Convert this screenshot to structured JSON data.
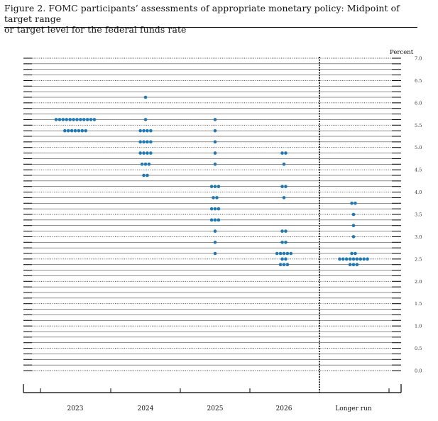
{
  "title": {
    "line1": "Figure 2.  FOMC participants’ assessments of appropriate monetary policy:  Midpoint of target range",
    "line2": "or target level for the federal funds rate"
  },
  "chart_data": {
    "type": "scatter",
    "subtype": "dot-plot",
    "unit_label": "Percent",
    "categories": [
      "2023",
      "2024",
      "2025",
      "2026",
      "Longer run"
    ],
    "ylim": [
      0.0,
      7.0
    ],
    "y_ticks": [
      "0.0",
      "0.5",
      "1.0",
      "1.5",
      "2.0",
      "2.5",
      "3.0",
      "3.5",
      "4.0",
      "4.5",
      "5.0",
      "5.5",
      "6.0",
      "6.5",
      "7.0"
    ],
    "dot_color": "#1f77b4",
    "grid": true,
    "columns": [
      {
        "category": "2023",
        "dots": [
          {
            "rate": 5.625,
            "count": 12
          },
          {
            "rate": 5.375,
            "count": 7
          }
        ]
      },
      {
        "category": "2024",
        "dots": [
          {
            "rate": 6.125,
            "count": 1
          },
          {
            "rate": 5.625,
            "count": 1
          },
          {
            "rate": 5.375,
            "count": 4
          },
          {
            "rate": 5.125,
            "count": 4
          },
          {
            "rate": 4.875,
            "count": 4
          },
          {
            "rate": 4.625,
            "count": 3
          },
          {
            "rate": 4.375,
            "count": 2
          }
        ]
      },
      {
        "category": "2025",
        "dots": [
          {
            "rate": 5.625,
            "count": 1
          },
          {
            "rate": 5.375,
            "count": 1
          },
          {
            "rate": 5.125,
            "count": 1
          },
          {
            "rate": 4.875,
            "count": 1
          },
          {
            "rate": 4.625,
            "count": 1
          },
          {
            "rate": 4.125,
            "count": 3
          },
          {
            "rate": 3.875,
            "count": 2
          },
          {
            "rate": 3.625,
            "count": 3
          },
          {
            "rate": 3.375,
            "count": 3
          },
          {
            "rate": 3.125,
            "count": 1
          },
          {
            "rate": 2.875,
            "count": 1
          },
          {
            "rate": 2.625,
            "count": 1
          }
        ]
      },
      {
        "category": "2026",
        "dots": [
          {
            "rate": 4.875,
            "count": 2
          },
          {
            "rate": 4.625,
            "count": 1
          },
          {
            "rate": 4.125,
            "count": 2
          },
          {
            "rate": 3.875,
            "count": 1
          },
          {
            "rate": 3.125,
            "count": 2
          },
          {
            "rate": 2.875,
            "count": 2
          },
          {
            "rate": 2.625,
            "count": 5
          },
          {
            "rate": 2.5,
            "count": 2
          },
          {
            "rate": 2.375,
            "count": 3
          }
        ]
      },
      {
        "category": "Longer run",
        "dots": [
          {
            "rate": 3.75,
            "count": 2
          },
          {
            "rate": 3.5,
            "count": 1
          },
          {
            "rate": 3.25,
            "count": 1
          },
          {
            "rate": 3.0,
            "count": 1
          },
          {
            "rate": 2.625,
            "count": 2
          },
          {
            "rate": 2.5,
            "count": 9
          },
          {
            "rate": 2.375,
            "count": 3
          }
        ]
      }
    ]
  }
}
